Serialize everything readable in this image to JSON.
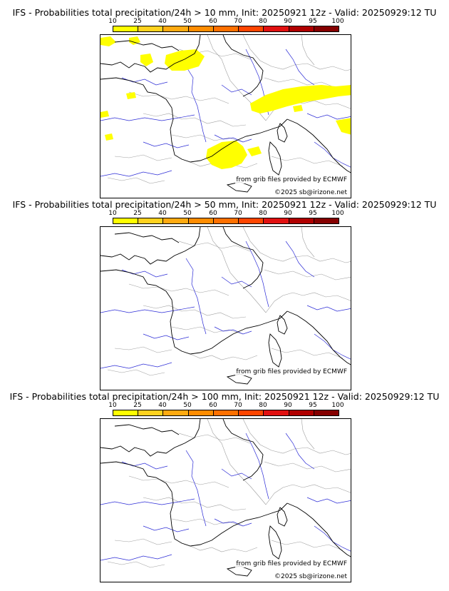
{
  "colorbar": {
    "labels": [
      "10",
      "25",
      "40",
      "50",
      "60",
      "70",
      "80",
      "90",
      "95",
      "100"
    ],
    "colors": [
      "#ffff00",
      "#ffd21e",
      "#ffaa10",
      "#ff8c00",
      "#ff7000",
      "#ff4500",
      "#e11010",
      "#b00000",
      "#850000",
      "#4d0000"
    ]
  },
  "palette": {
    "rivers": "#2b2bd6",
    "borders": "#a0a0a0",
    "coast": "#000000",
    "precip": "#ffff00"
  },
  "panels": [
    {
      "title": "IFS - Probabilities total precipitation/24h > 10 mm, Init: 20250921 12z - Valid: 20250929:12 TU",
      "credit_source": "from grib files provided by ECMWF",
      "credit_copyright": "©2025 sb@irizone.net",
      "has_precip": true
    },
    {
      "title": "IFS - Probabilities total precipitation/24h > 50 mm, Init: 20250921 12z - Valid: 20250929:12 TU",
      "credit_source": "from grib files provided by ECMWF",
      "credit_copyright": "",
      "has_precip": false
    },
    {
      "title": "IFS - Probabilities total precipitation/24h > 100 mm, Init: 20250921 12z - Valid: 20250929:12 TU",
      "credit_source": "from grib files provided by ECMWF",
      "credit_copyright": "©2025 sb@irizone.net",
      "has_precip": false
    }
  ]
}
